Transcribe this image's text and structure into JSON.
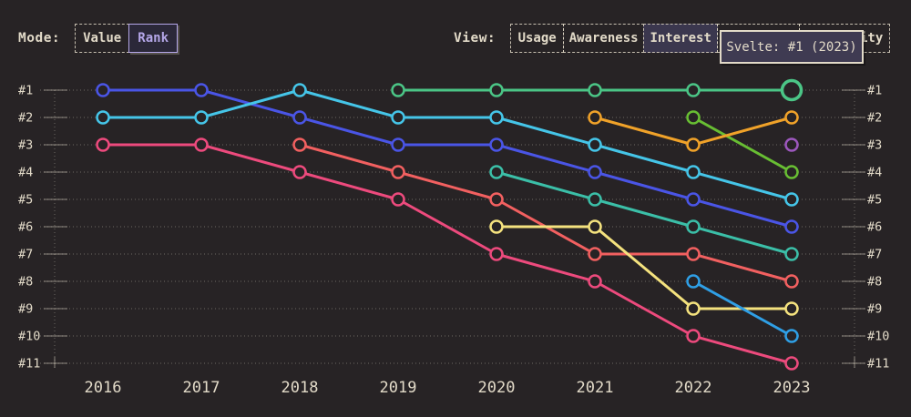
{
  "page": {
    "background": "#272325",
    "text_color": "#E2DAC8",
    "accent_lavender": "#B4A6E8"
  },
  "controls": {
    "mode": {
      "label": "Mode:",
      "options": [
        {
          "label": "Value",
          "selected": false
        },
        {
          "label": "Rank",
          "selected": true
        }
      ]
    },
    "view": {
      "label": "View:",
      "options": [
        {
          "label": "Usage",
          "selected": false
        },
        {
          "label": "Awareness",
          "selected": false
        },
        {
          "label": "Interest",
          "selected": true
        },
        {
          "label": "",
          "selected": false
        },
        {
          "label": "Positivity",
          "selected": false
        }
      ]
    }
  },
  "tooltip": {
    "text": "Svelte: #1 (2023)",
    "background": "#3F3B52",
    "border_color": "#E2DAC8"
  },
  "chart_data": {
    "type": "line",
    "subtype": "bump-chart-rankings",
    "title": "",
    "xlabel": "",
    "ylabel": "rank (#1 top to #11 bottom, both sides labeled)",
    "grid": "dotted horizontal line per rank, dotted vertical axis lines left and right",
    "legend_position": "none",
    "x_categories": [
      2016,
      2017,
      2018,
      2019,
      2020,
      2021,
      2022,
      2023
    ],
    "y_tick_labels": [
      "#1",
      "#2",
      "#3",
      "#4",
      "#5",
      "#6",
      "#7",
      "#8",
      "#9",
      "#10",
      "#11"
    ],
    "series": [
      {
        "name": "series-indigo",
        "color": "#4A55E6",
        "ranks": [
          1,
          1,
          2,
          3,
          3,
          4,
          5,
          6
        ]
      },
      {
        "name": "series-cyan",
        "color": "#45C5E8",
        "ranks": [
          2,
          2,
          1,
          2,
          2,
          3,
          4,
          5
        ]
      },
      {
        "name": "series-pink",
        "color": "#ED4A7D",
        "ranks": [
          3,
          3,
          4,
          5,
          7,
          8,
          10,
          11
        ]
      },
      {
        "name": "series-salmon",
        "color": "#F26060",
        "ranks": [
          null,
          null,
          3,
          4,
          5,
          7,
          7,
          8
        ]
      },
      {
        "name": "series-teal",
        "color": "#3BBFA8",
        "ranks": [
          null,
          null,
          null,
          null,
          4,
          5,
          6,
          7
        ]
      },
      {
        "name": "series-yellow",
        "color": "#F4E27E",
        "ranks": [
          null,
          null,
          null,
          null,
          6,
          6,
          9,
          9
        ]
      },
      {
        "name": "series-lime",
        "color": "#68BE33",
        "ranks": [
          null,
          null,
          null,
          null,
          null,
          null,
          2,
          4
        ]
      },
      {
        "name": "series-sky",
        "color": "#2F9FE5",
        "ranks": [
          null,
          null,
          null,
          null,
          null,
          null,
          8,
          10
        ]
      },
      {
        "name": "series-orange",
        "color": "#F0A229",
        "ranks": [
          null,
          null,
          null,
          null,
          null,
          2,
          3,
          2
        ]
      },
      {
        "name": "series-purple",
        "color": "#9C57BD",
        "ranks": [
          null,
          null,
          null,
          null,
          null,
          null,
          null,
          3
        ]
      },
      {
        "name": "Svelte",
        "color": "#4BC586",
        "ranks": [
          null,
          null,
          null,
          1,
          1,
          1,
          1,
          1
        ]
      }
    ],
    "highlight_point": {
      "series": "Svelte",
      "year": 2023,
      "rank": 1
    }
  }
}
